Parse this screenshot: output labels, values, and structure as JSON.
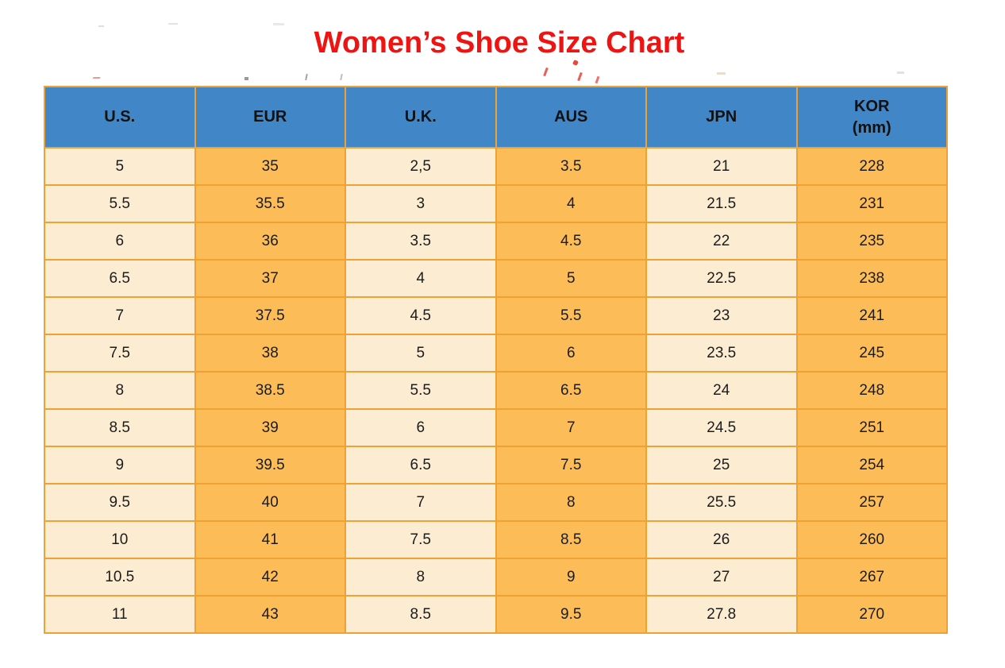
{
  "title": "Women’s Shoe Size Chart",
  "colors": {
    "title_red": "#ee1412",
    "header_blue": "#4187c7",
    "header_text": "#111111",
    "cell_cream": "#fcecd2",
    "cell_orange": "#fcbd59",
    "border_orange": "#f0a133",
    "cell_text": "#1c1c1c"
  },
  "chart_data": {
    "type": "table",
    "title": "Women’s Shoe Size Chart",
    "columns": [
      "U.S.",
      "EUR",
      "U.K.",
      "AUS",
      "JPN",
      "KOR (mm)"
    ],
    "header_lines": [
      [
        "U.S."
      ],
      [
        "EUR"
      ],
      [
        "U.K."
      ],
      [
        "AUS"
      ],
      [
        "JPN"
      ],
      [
        "KOR",
        "(mm)"
      ]
    ],
    "rows": [
      [
        "5",
        "35",
        "2,5",
        "3.5",
        "21",
        "228"
      ],
      [
        "5.5",
        "35.5",
        "3",
        "4",
        "21.5",
        "231"
      ],
      [
        "6",
        "36",
        "3.5",
        "4.5",
        "22",
        "235"
      ],
      [
        "6.5",
        "37",
        "4",
        "5",
        "22.5",
        "238"
      ],
      [
        "7",
        "37.5",
        "4.5",
        "5.5",
        "23",
        "241"
      ],
      [
        "7.5",
        "38",
        "5",
        "6",
        "23.5",
        "245"
      ],
      [
        "8",
        "38.5",
        "5.5",
        "6.5",
        "24",
        "248"
      ],
      [
        "8.5",
        "39",
        "6",
        "7",
        "24.5",
        "251"
      ],
      [
        "9",
        "39.5",
        "6.5",
        "7.5",
        "25",
        "254"
      ],
      [
        "9.5",
        "40",
        "7",
        "8",
        "25.5",
        "257"
      ],
      [
        "10",
        "41",
        "7.5",
        "8.5",
        "26",
        "260"
      ],
      [
        "10.5",
        "42",
        "8",
        "9",
        "27",
        "267"
      ],
      [
        "11",
        "43",
        "8.5",
        "9.5",
        "27.8",
        "270"
      ]
    ]
  }
}
